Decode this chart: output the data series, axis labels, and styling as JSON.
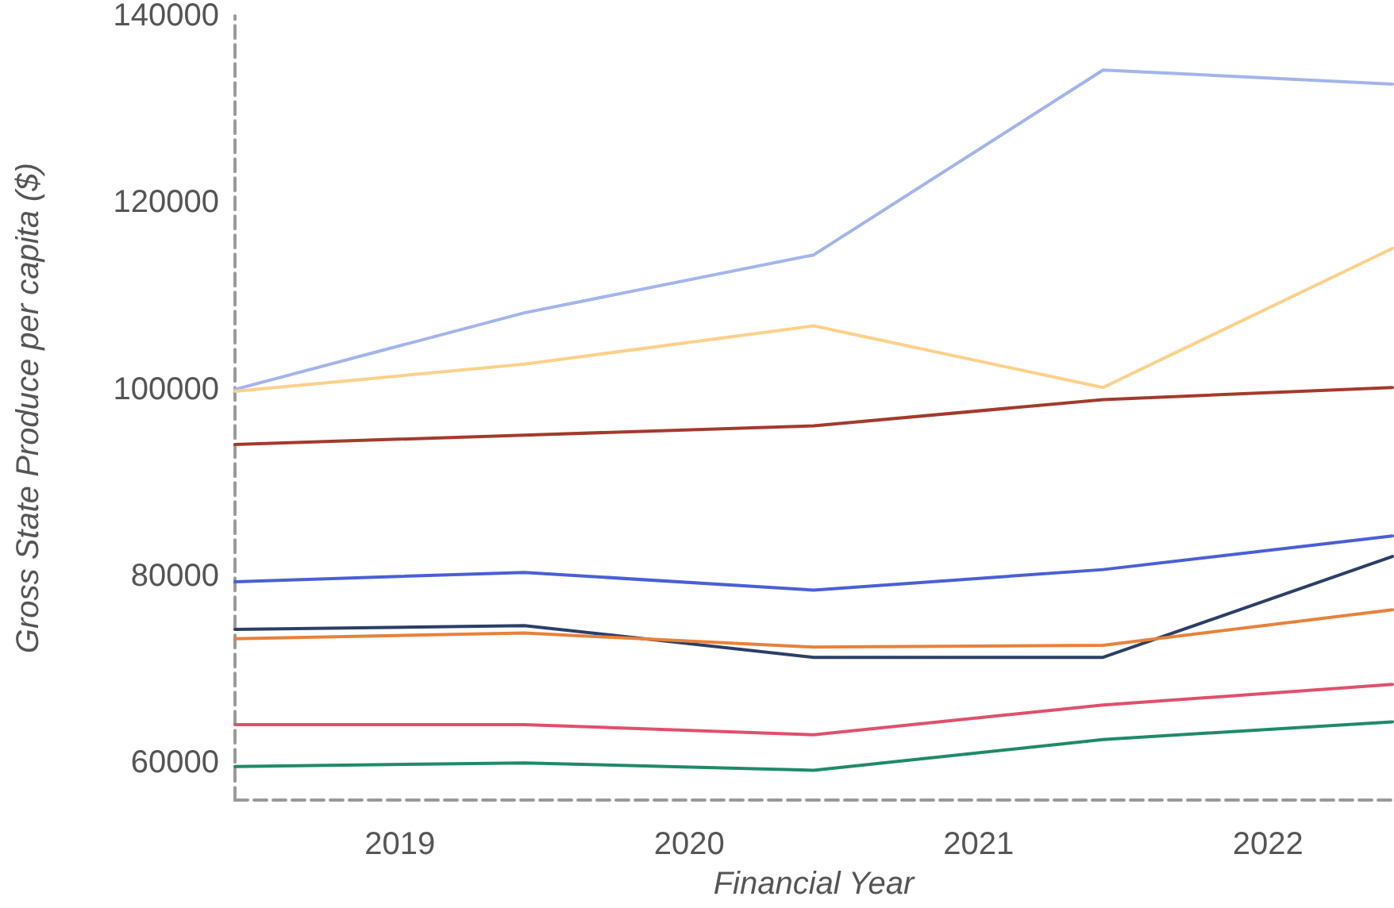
{
  "chart_data": {
    "type": "line",
    "xlabel": "Financial Year",
    "ylabel": "Gross State Produce per capita ($)",
    "x": [
      2018.43,
      2019.43,
      2020.43,
      2021.43,
      2022.43
    ],
    "xlim": [
      2018.43,
      2022.43
    ],
    "xticks": [
      2019,
      2020,
      2021,
      2022
    ],
    "ylim": [
      56000,
      140000
    ],
    "yticks": [
      60000,
      80000,
      100000,
      120000,
      140000
    ],
    "grid": false,
    "marker": "none",
    "line_style": "solid",
    "series": [
      {
        "color": "#a3b4ec",
        "values": [
          100000,
          108200,
          114400,
          134200,
          132700
        ]
      },
      {
        "color": "#fdd08a",
        "values": [
          99800,
          102700,
          106800,
          100200,
          115100
        ]
      },
      {
        "color": "#a33a2c",
        "values": [
          94100,
          95100,
          96100,
          98900,
          100200
        ]
      },
      {
        "color": "#4a5fd6",
        "values": [
          79400,
          80400,
          78500,
          80700,
          84300
        ]
      },
      {
        "color": "#2b3f66",
        "values": [
          74300,
          74700,
          71300,
          71300,
          82100
        ]
      },
      {
        "color": "#e8813a",
        "values": [
          73300,
          73900,
          72400,
          72600,
          76400
        ]
      },
      {
        "color": "#e0506b",
        "values": [
          64100,
          64100,
          63000,
          66200,
          68400
        ]
      },
      {
        "color": "#1f8a6a",
        "values": [
          59600,
          60000,
          59200,
          62500,
          64400
        ]
      }
    ]
  }
}
